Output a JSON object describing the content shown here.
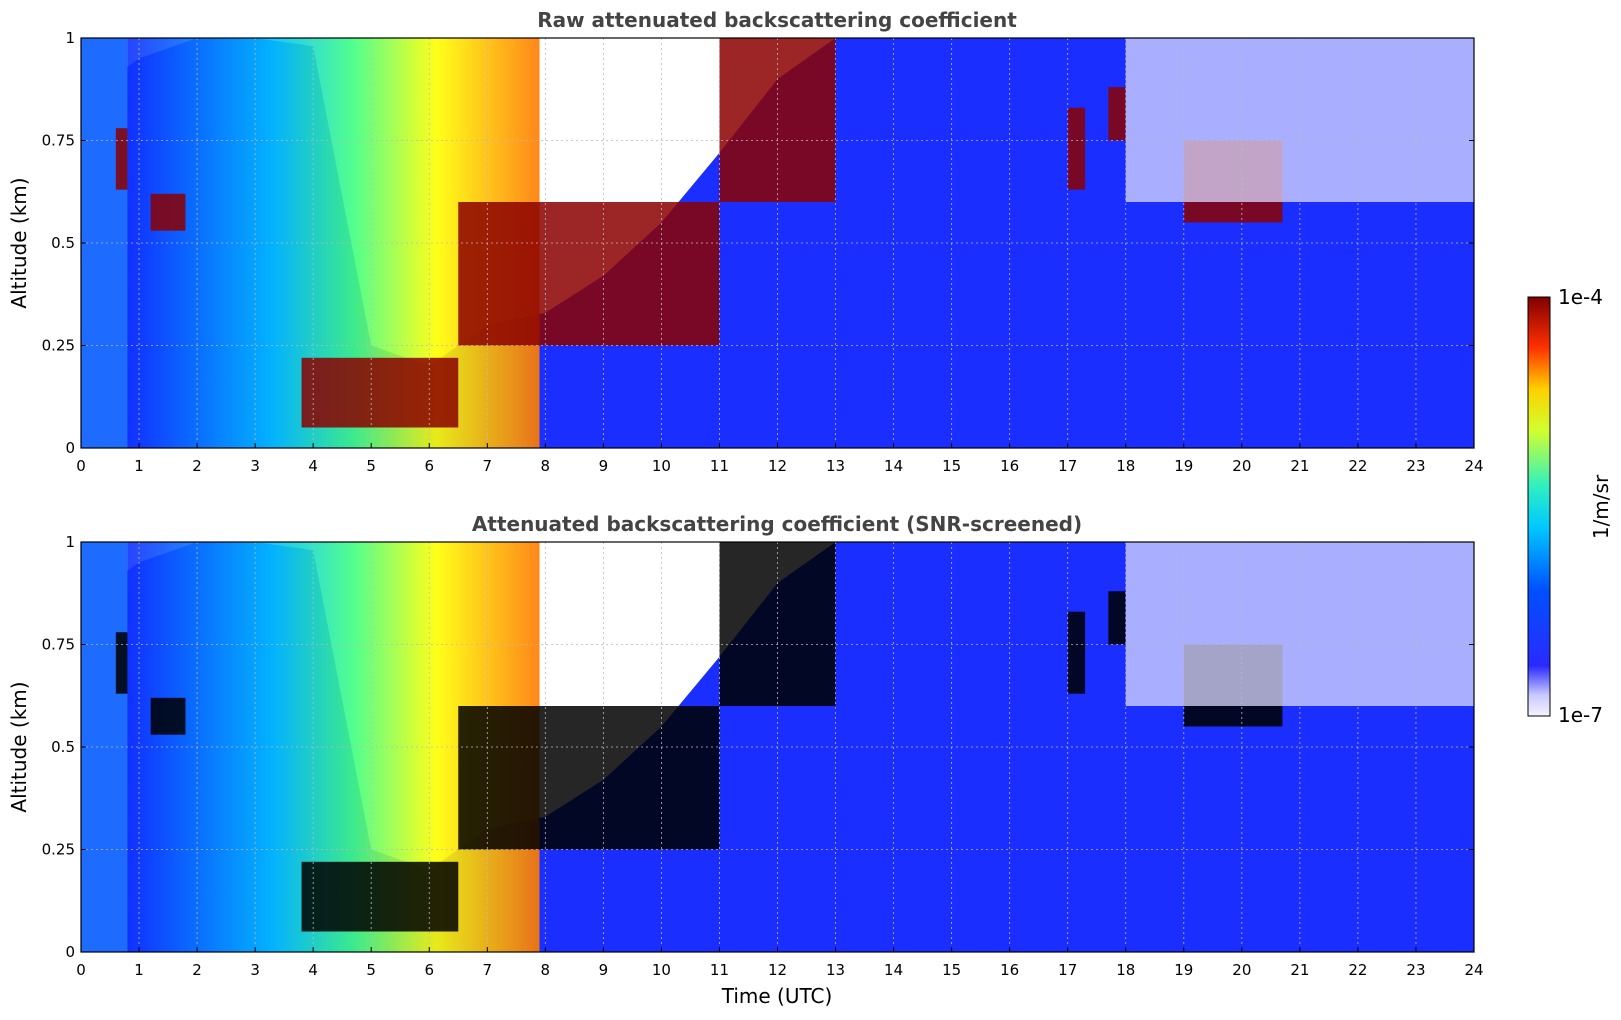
{
  "chart_data": [
    {
      "type": "heatmap",
      "title": "Raw attenuated backscattering coefficient",
      "xlabel": "",
      "ylabel": "Altitude (km)",
      "xlim": [
        0,
        24
      ],
      "ylim": [
        0,
        1
      ],
      "xticks": [
        "0",
        "1",
        "2",
        "3",
        "4",
        "5",
        "6",
        "7",
        "8",
        "9",
        "10",
        "11",
        "12",
        "13",
        "14",
        "15",
        "16",
        "17",
        "18",
        "19",
        "20",
        "21",
        "22",
        "23",
        "24"
      ],
      "yticks": [
        "0",
        "0.25",
        "0.5",
        "0.75",
        "1"
      ],
      "grid": true,
      "features": {
        "layer_top_km": [
          [
            0,
            0.85
          ],
          [
            0.5,
            0.9
          ],
          [
            1,
            0.95
          ],
          [
            2,
            1.0
          ],
          [
            3,
            1.0
          ],
          [
            4,
            0.98
          ],
          [
            5,
            0.25
          ],
          [
            6,
            0.2
          ],
          [
            7,
            0.3
          ],
          [
            8,
            0.33
          ],
          [
            9,
            0.42
          ],
          [
            10,
            0.55
          ],
          [
            11,
            0.72
          ],
          [
            12,
            0.9
          ],
          [
            13,
            1.0
          ]
        ],
        "cloud_bands": [
          {
            "start": 0.6,
            "end": 0.8,
            "bottom": 0.63,
            "top": 0.78
          },
          {
            "start": 1.2,
            "end": 1.8,
            "bottom": 0.53,
            "top": 0.62
          },
          {
            "start": 3.8,
            "end": 6.5,
            "bottom": 0.05,
            "top": 0.22
          },
          {
            "start": 6.5,
            "end": 11.0,
            "bottom": 0.25,
            "top": 0.6
          },
          {
            "start": 11.0,
            "end": 13.0,
            "bottom": 0.6,
            "top": 1.0
          },
          {
            "start": 17.0,
            "end": 17.3,
            "bottom": 0.63,
            "top": 0.83
          },
          {
            "start": 17.7,
            "end": 18.0,
            "bottom": 0.75,
            "top": 0.88
          },
          {
            "start": 19.0,
            "end": 20.7,
            "bottom": 0.55,
            "top": 0.75
          }
        ]
      }
    },
    {
      "type": "heatmap",
      "title": "Attenuated backscattering coefficient (SNR-screened)",
      "xlabel": "Time (UTC)",
      "ylabel": "Altitude (km)",
      "xlim": [
        0,
        24
      ],
      "ylim": [
        0,
        1
      ],
      "xticks": [
        "0",
        "1",
        "2",
        "3",
        "4",
        "5",
        "6",
        "7",
        "8",
        "9",
        "10",
        "11",
        "12",
        "13",
        "14",
        "15",
        "16",
        "17",
        "18",
        "19",
        "20",
        "21",
        "22",
        "23",
        "24"
      ],
      "yticks": [
        "0",
        "0.25",
        "0.5",
        "0.75",
        "1"
      ],
      "grid": true
    }
  ],
  "colorbar": {
    "label": "1/m/sr",
    "max_label": "1e-4",
    "min_label": "1e-7",
    "scale": "log",
    "colormap": "jet",
    "range": [
      1e-07,
      0.0001
    ]
  },
  "colors": {
    "background_low": "#1a2fff",
    "cloud": "#8b0000",
    "masked": "#ffffff",
    "title": "#444444"
  }
}
